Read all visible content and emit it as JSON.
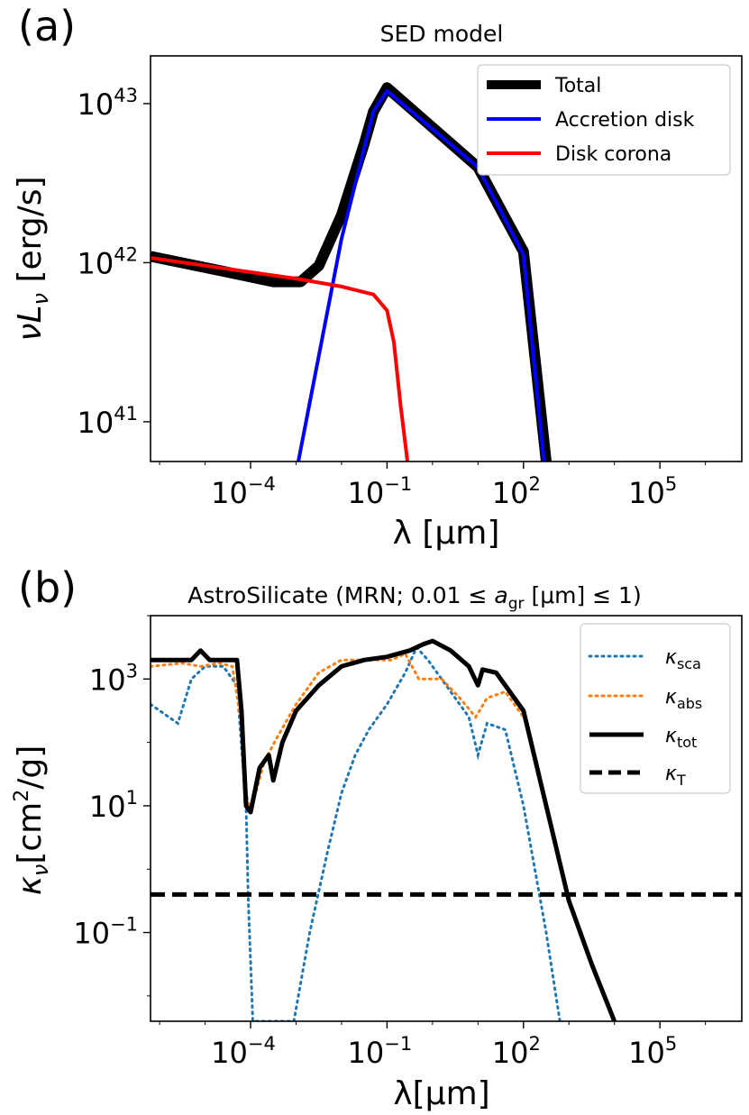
{
  "panel_a": {
    "label": "(a)",
    "chart_data": {
      "type": "line",
      "title": "SED model",
      "xlabel": "λ [μm]",
      "ylabel": "νL_ν [erg/s]",
      "xscale": "log",
      "yscale": "log",
      "xlim_exp": [
        -6.2,
        6.8
      ],
      "ylim_exp": [
        40.75,
        43.3
      ],
      "xticks": [
        {
          "base": "10",
          "exp": "−4",
          "value_exp": -4
        },
        {
          "base": "10",
          "exp": "−1",
          "value_exp": -1
        },
        {
          "base": "10",
          "exp": "2",
          "value_exp": 2
        },
        {
          "base": "10",
          "exp": "5",
          "value_exp": 5
        }
      ],
      "yticks": [
        {
          "base": "10",
          "exp": "41",
          "value_exp": 41
        },
        {
          "base": "10",
          "exp": "42",
          "value_exp": 42
        },
        {
          "base": "10",
          "exp": "43",
          "value_exp": 43
        }
      ],
      "legend_position": "top-right",
      "series": [
        {
          "name": "Total",
          "color": "#000000",
          "style": "solid-thick-outline",
          "points": [
            [
              -6.2,
              42.04
            ],
            [
              -4.5,
              41.94
            ],
            [
              -3.5,
              41.88
            ],
            [
              -2.9,
              41.88
            ],
            [
              -2.5,
              41.98
            ],
            [
              -2.0,
              42.3
            ],
            [
              -1.5,
              42.75
            ],
            [
              -1.3,
              42.95
            ],
            [
              -1.0,
              43.1
            ],
            [
              1.0,
              42.6
            ],
            [
              2.0,
              42.07
            ],
            [
              2.5,
              40.75
            ]
          ]
        },
        {
          "name": "Accretion disk",
          "color": "#0000ff",
          "style": "solid",
          "points": [
            [
              -2.95,
              40.75
            ],
            [
              -2.0,
              42.15
            ],
            [
              -1.3,
              42.95
            ],
            [
              -1.0,
              43.08
            ],
            [
              1.0,
              42.6
            ],
            [
              2.0,
              42.05
            ],
            [
              2.45,
              40.75
            ]
          ]
        },
        {
          "name": "Disk corona",
          "color": "#ff0000",
          "style": "solid",
          "points": [
            [
              -6.2,
              42.03
            ],
            [
              -3.0,
              41.9
            ],
            [
              -2.0,
              41.85
            ],
            [
              -1.3,
              41.8
            ],
            [
              -1.0,
              41.7
            ],
            [
              -0.85,
              41.5
            ],
            [
              -0.7,
              41.1
            ],
            [
              -0.55,
              40.75
            ]
          ]
        }
      ]
    }
  },
  "panel_b": {
    "label": "(b)",
    "chart_data": {
      "type": "line",
      "title": "AstroSilicate (MRN; 0.01 ≤ a_gr [μm] ≤ 1)",
      "title_parts": {
        "prefix": "AstroSilicate (MRN; 0.01 ≤ ",
        "var": "a",
        "sub": "gr",
        "mid": " [μm] ≤ 1)"
      },
      "xlabel": "λ[μm]",
      "ylabel": "κ_ν[cm²/g]",
      "xscale": "log",
      "yscale": "log",
      "xlim_exp": [
        -6.2,
        6.8
      ],
      "ylim_exp": [
        -2.4,
        4.0
      ],
      "xticks": [
        {
          "base": "10",
          "exp": "−4",
          "value_exp": -4
        },
        {
          "base": "10",
          "exp": "−1",
          "value_exp": -1
        },
        {
          "base": "10",
          "exp": "2",
          "value_exp": 2
        },
        {
          "base": "10",
          "exp": "5",
          "value_exp": 5
        }
      ],
      "yticks": [
        {
          "base": "10",
          "exp": "−1",
          "value_exp": -1
        },
        {
          "base": "10",
          "exp": "1",
          "value_exp": 1
        },
        {
          "base": "10",
          "exp": "3",
          "value_exp": 3
        }
      ],
      "legend_position": "top-right",
      "series": [
        {
          "name": "κ_sca",
          "label_main": "κ",
          "label_sub": "sca",
          "color": "#1f77b4",
          "style": "dotted",
          "points": [
            [
              -6.2,
              2.6
            ],
            [
              -5.6,
              2.3
            ],
            [
              -5.3,
              3.0
            ],
            [
              -5.0,
              3.2
            ],
            [
              -4.6,
              3.2
            ],
            [
              -4.3,
              2.9
            ],
            [
              -4.1,
              1.0
            ],
            [
              -4.05,
              -0.5
            ],
            [
              -3.95,
              -2.4
            ],
            [
              -3.05,
              -2.4
            ],
            [
              -2.7,
              -1.0
            ],
            [
              -2.3,
              0.3
            ],
            [
              -2.0,
              1.2
            ],
            [
              -1.7,
              1.8
            ],
            [
              -1.4,
              2.2
            ],
            [
              -1.0,
              2.6
            ],
            [
              -0.6,
              3.1
            ],
            [
              -0.35,
              3.5
            ],
            [
              -0.1,
              3.3
            ],
            [
              0.4,
              2.8
            ],
            [
              0.8,
              2.4
            ],
            [
              1.0,
              1.8
            ],
            [
              1.2,
              2.3
            ],
            [
              1.6,
              2.2
            ],
            [
              2.0,
              1.0
            ],
            [
              2.5,
              -1.0
            ],
            [
              2.8,
              -2.4
            ]
          ]
        },
        {
          "name": "κ_abs",
          "label_main": "κ",
          "label_sub": "abs",
          "color": "#ff7f0e",
          "style": "dotted",
          "points": [
            [
              -6.2,
              3.2
            ],
            [
              -5.5,
              3.25
            ],
            [
              -5.1,
              3.2
            ],
            [
              -4.7,
              3.25
            ],
            [
              -4.4,
              3.2
            ],
            [
              -4.2,
              2.3
            ],
            [
              -4.1,
              1.2
            ],
            [
              -4.0,
              0.9
            ],
            [
              -3.7,
              1.7
            ],
            [
              -3.4,
              2.1
            ],
            [
              -3.0,
              2.6
            ],
            [
              -2.5,
              3.1
            ],
            [
              -2.0,
              3.3
            ],
            [
              -1.5,
              3.3
            ],
            [
              -0.9,
              3.3
            ],
            [
              -0.6,
              3.4
            ],
            [
              -0.3,
              3.0
            ],
            [
              0.2,
              3.0
            ],
            [
              0.6,
              2.7
            ],
            [
              0.95,
              2.4
            ],
            [
              1.2,
              2.7
            ],
            [
              1.6,
              2.8
            ],
            [
              2.0,
              2.4
            ]
          ]
        },
        {
          "name": "κ_tot",
          "label_main": "κ",
          "label_sub": "tot",
          "color": "#000000",
          "style": "solid-thick",
          "points": [
            [
              -6.2,
              3.3
            ],
            [
              -5.3,
              3.3
            ],
            [
              -5.1,
              3.45
            ],
            [
              -4.9,
              3.3
            ],
            [
              -4.3,
              3.3
            ],
            [
              -4.2,
              2.5
            ],
            [
              -4.1,
              1.0
            ],
            [
              -4.0,
              0.9
            ],
            [
              -3.8,
              1.6
            ],
            [
              -3.6,
              1.8
            ],
            [
              -3.5,
              1.4
            ],
            [
              -3.3,
              2.0
            ],
            [
              -3.0,
              2.5
            ],
            [
              -2.5,
              2.9
            ],
            [
              -2.0,
              3.2
            ],
            [
              -1.5,
              3.3
            ],
            [
              -1.0,
              3.35
            ],
            [
              -0.5,
              3.45
            ],
            [
              -0.2,
              3.55
            ],
            [
              0.0,
              3.6
            ],
            [
              0.4,
              3.45
            ],
            [
              0.8,
              3.2
            ],
            [
              1.0,
              2.9
            ],
            [
              1.1,
              3.15
            ],
            [
              1.4,
              3.1
            ],
            [
              2.0,
              2.5
            ],
            [
              2.5,
              1.0
            ],
            [
              3.0,
              -0.5
            ],
            [
              3.5,
              -1.5
            ],
            [
              4.0,
              -2.4
            ]
          ]
        },
        {
          "name": "κ_T",
          "label_main": "κ",
          "label_sub": "T",
          "color": "#000000",
          "style": "dashed",
          "points": [
            [
              -6.2,
              -0.4
            ],
            [
              6.8,
              -0.4
            ]
          ]
        }
      ]
    }
  }
}
